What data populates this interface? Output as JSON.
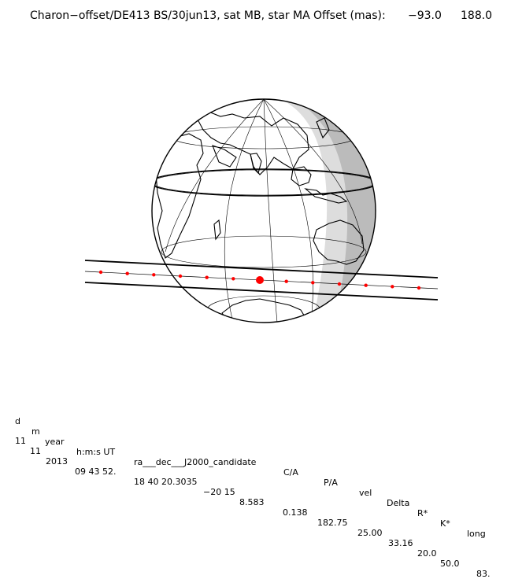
{
  "header": {
    "title": "Charon−offset/DE413 BS/30jun13, sat MB, star MA",
    "offset_label": "Offset (mas):",
    "offset_x": "−93.0",
    "offset_y": "188.0"
  },
  "colors": {
    "ink": "#000000",
    "chord_dots": "#ff0000",
    "night_shade": "#bbbbbb",
    "twilight_shade": "#dddddd"
  },
  "table": {
    "headers": [
      "d",
      "m",
      "year",
      "h:m:s UT",
      "ra___dec___J2000_candidate",
      "C/A",
      "P/A",
      "vel",
      "Delta",
      "R*",
      "K*",
      "long"
    ],
    "values": [
      "11",
      "11",
      "2013",
      "09 43 52.",
      "18 40 20.3035",
      "−20 15",
      "8.583",
      "0.138",
      "182.75",
      "25.00",
      "33.16",
      "20.0",
      "50.0",
      "83."
    ]
  }
}
